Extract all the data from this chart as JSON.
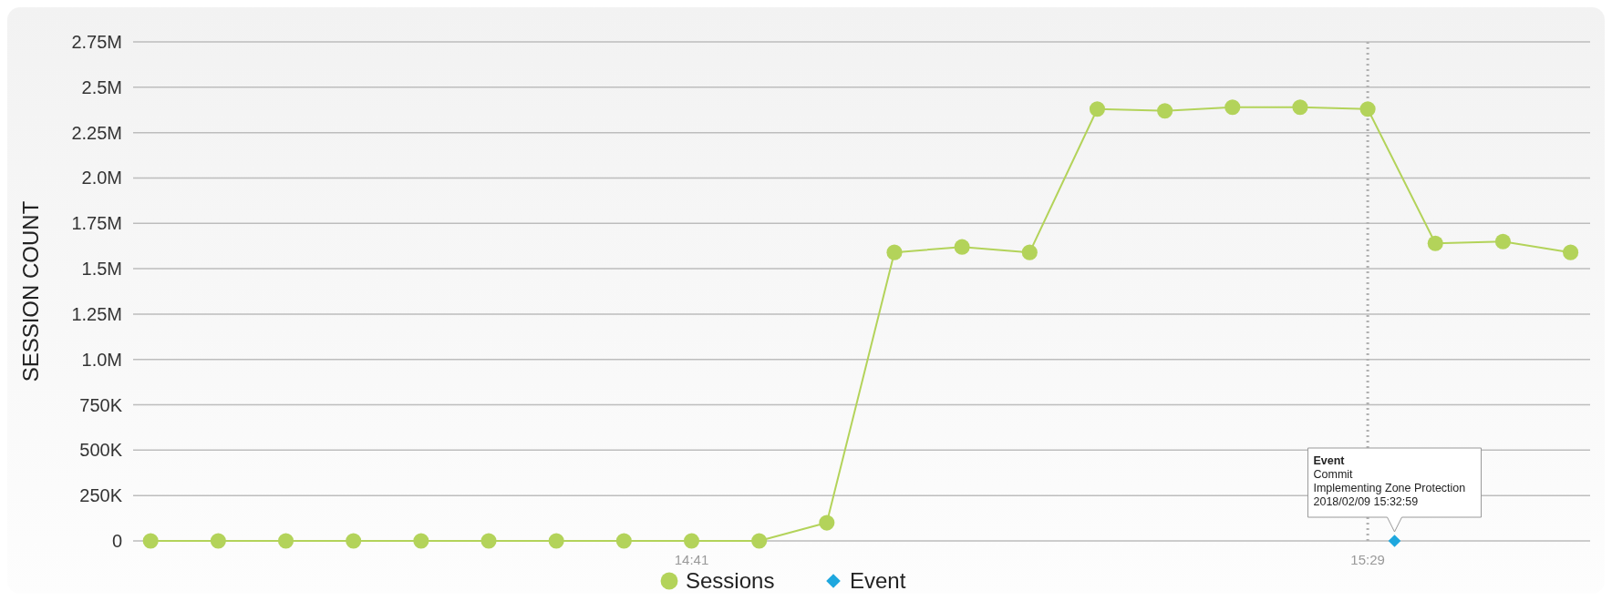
{
  "chart_data": {
    "type": "line",
    "ylabel": "SESSION COUNT",
    "xlim": [
      14.0226,
      15.7464
    ],
    "xticks": [
      {
        "value": 14.6833,
        "label": "14:41"
      },
      {
        "value": 15.4833,
        "label": "15:29"
      }
    ],
    "ylim": [
      0,
      2750000
    ],
    "yticks": [
      0,
      {
        "value": 250000,
        "label": "250K"
      },
      {
        "value": 500000,
        "label": "500K"
      },
      {
        "value": 750000,
        "label": "750K"
      },
      {
        "value": 1000000,
        "label": "1.0M"
      },
      {
        "value": 1250000,
        "label": "1.25M"
      },
      {
        "value": 1500000,
        "label": "1.5M"
      },
      {
        "value": 1750000,
        "label": "1.75M"
      },
      {
        "value": 2000000,
        "label": "2.0M"
      },
      {
        "value": 2250000,
        "label": "2.25M"
      },
      {
        "value": 2500000,
        "label": "2.5M"
      },
      {
        "value": 2750000,
        "label": "2.75M"
      }
    ],
    "grid": "y",
    "legend": "bottom",
    "series": [
      {
        "name": "Sessions",
        "color": "#b3d35a",
        "marker": "circle",
        "x": [
          14.0433,
          14.1233,
          14.2033,
          14.2833,
          14.3633,
          14.4433,
          14.5233,
          14.6033,
          14.6833,
          14.7633,
          14.8433,
          14.9233,
          15.0033,
          15.0833,
          15.1633,
          15.2433,
          15.3233,
          15.4033,
          15.4833,
          15.5633,
          15.6433,
          15.7233
        ],
        "values": [
          0,
          0,
          0,
          0,
          0,
          0,
          0,
          0,
          0,
          0,
          100000,
          1590000,
          1620000,
          1590000,
          2380000,
          2370000,
          2390000,
          2390000,
          2380000,
          1640000,
          1650000,
          1590000
        ]
      },
      {
        "name": "Event",
        "type": "scatter",
        "color": "#1ea7de",
        "marker": "diamond",
        "x": [
          15.515
        ],
        "values": [
          0
        ]
      }
    ],
    "ref_lines": [
      {
        "axis": "x",
        "value": 15.4833,
        "color": "#b0b0b0",
        "line_style": "dotted"
      }
    ],
    "annotations": [
      {
        "text": "Event\nCommit\nImplementing Zone Protection\n2018/02/09  15:32:59",
        "x": 15.515,
        "y": 0
      }
    ]
  }
}
